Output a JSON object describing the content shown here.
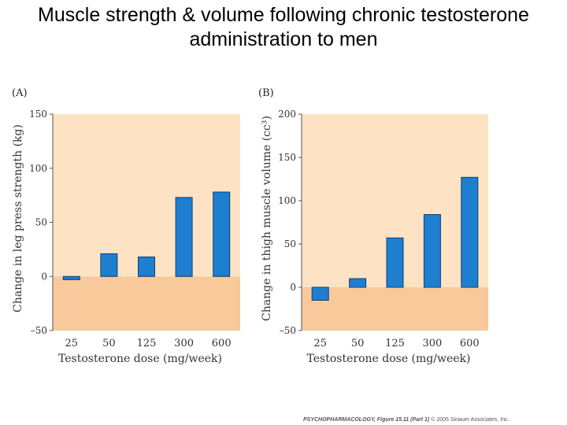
{
  "title": {
    "line1": "Muscle strength & volume following chronic testosterone",
    "line2": "administration to men"
  },
  "footer": {
    "source": "PSYCHOPHARMACOLOGY, Figure 15.11 (Part 1)",
    "copyright": "© 2005 Sinauer Associates, Inc."
  },
  "colors": {
    "positive_bg": "#fde3c3",
    "negative_bg": "#f8c99a",
    "bar": "#1e7fd0",
    "bar_stroke": "#0b3f78"
  },
  "chart_data": [
    {
      "type": "bar",
      "panel": "(A)",
      "categories": [
        "25",
        "50",
        "125",
        "300",
        "600"
      ],
      "values": [
        -3,
        21,
        18,
        73,
        78
      ],
      "xlabel": "Testosterone dose (mg/week)",
      "ylabel": "Change in leg press strength (kg)",
      "ylim": [
        -50,
        150
      ],
      "yticks": [
        "–50",
        "0",
        "50",
        "100",
        "150"
      ],
      "ytick_values": [
        -50,
        0,
        50,
        100,
        150
      ]
    },
    {
      "type": "bar",
      "panel": "(B)",
      "categories": [
        "25",
        "50",
        "125",
        "300",
        "600"
      ],
      "values": [
        -15,
        10,
        57,
        84,
        127
      ],
      "xlabel": "Testosterone dose (mg/week)",
      "ylabel": "Change in thigh muscle volume (cc³)",
      "ylim": [
        -50,
        200
      ],
      "yticks": [
        "–50",
        "0",
        "50",
        "100",
        "150",
        "200"
      ],
      "ytick_values": [
        -50,
        0,
        50,
        100,
        150,
        200
      ]
    }
  ]
}
